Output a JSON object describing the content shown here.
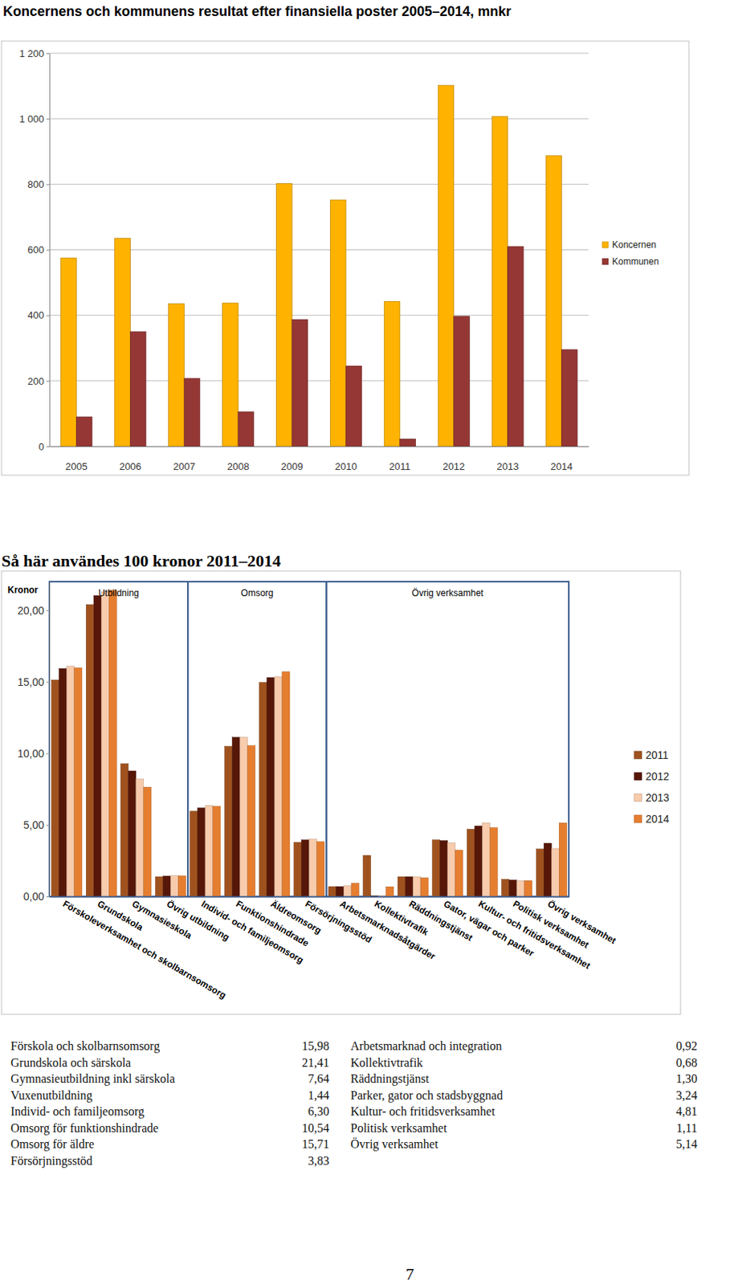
{
  "chart_data": [
    {
      "type": "bar",
      "title": "Koncernens och kommunens resultat efter finansiella poster 2005–2014, mnkr",
      "categories": [
        "2005",
        "2006",
        "2007",
        "2008",
        "2009",
        "2010",
        "2011",
        "2012",
        "2013",
        "2014"
      ],
      "series": [
        {
          "name": "Koncernen",
          "color": "#FFB300",
          "values": [
            575,
            635,
            435,
            437,
            802,
            752,
            442,
            1102,
            1007,
            887
          ]
        },
        {
          "name": "Kommunen",
          "color": "#953735",
          "values": [
            90,
            350,
            207,
            105,
            387,
            245,
            22,
            397,
            610,
            295
          ]
        }
      ],
      "ylim": [
        0,
        1200
      ],
      "yticks": [
        0,
        200,
        400,
        600,
        800,
        {
          "value": 1000,
          "label": "1 000"
        },
        {
          "value": 1200,
          "label": "1 200"
        }
      ],
      "grid": true,
      "legend": "right"
    },
    {
      "type": "bar",
      "title": "Så här användes 100 kronor 2011–2014",
      "y_label": "Kronor",
      "categories": [
        "Förskoleverksamhet och skolbarnsomsorg",
        "Grundskola",
        "Gymnasieskola",
        "Övrig utbildning",
        "Individ- och familjeomsorg",
        "Funktionshindrade",
        "Äldreomsorg",
        "Försörjningsstöd",
        "Arbetsmarknadsåtgärder",
        "Kollektivtrafik",
        "Räddningstjänst",
        "Gator, vägar och parker",
        "Kultur- och fritidsverksamhet",
        "Politisk verksamhet",
        "Övrig verksamhet"
      ],
      "groups": [
        {
          "label": "Utbildning",
          "size": 4
        },
        {
          "label": "Omsorg",
          "size": 4
        },
        {
          "label": "Övrig verksamhet",
          "size": 7
        }
      ],
      "series": [
        {
          "name": "2011",
          "color": "#A0521E",
          "values": [
            15.13,
            20.4,
            9.28,
            1.38,
            5.96,
            10.49,
            14.96,
            3.78,
            0.69,
            2.87,
            1.38,
            3.95,
            4.7,
            1.2,
            3.32
          ]
        },
        {
          "name": "2012",
          "color": "#561608",
          "values": [
            15.93,
            21.03,
            8.77,
            1.43,
            6.19,
            11.12,
            15.3,
            3.95,
            0.69,
            0.05,
            1.38,
            3.9,
            4.93,
            1.15,
            3.72
          ]
        },
        {
          "name": "2013",
          "color": "#F7CBAC",
          "values": [
            16.1,
            21.3,
            8.2,
            1.45,
            6.36,
            11.12,
            15.36,
            4.0,
            0.75,
            0.06,
            1.38,
            3.75,
            5.15,
            1.1,
            3.35
          ]
        },
        {
          "name": "2014",
          "color": "#E67E30",
          "values": [
            15.98,
            21.41,
            7.64,
            1.44,
            6.3,
            10.54,
            15.71,
            3.83,
            0.92,
            0.68,
            1.3,
            3.24,
            4.81,
            1.11,
            5.14
          ]
        }
      ],
      "ylim": [
        0,
        22
      ],
      "yticks": [
        {
          "value": 0,
          "label": "0,00"
        },
        {
          "value": 5,
          "label": "5,00"
        },
        {
          "value": 10,
          "label": "10,00"
        },
        {
          "value": 15,
          "label": "15,00"
        },
        {
          "value": 20,
          "label": "20,00"
        }
      ],
      "grid": false,
      "legend": "right"
    }
  ],
  "table": {
    "columns": [
      [
        [
          "Förskola och skolbarnsomsorg",
          "15,98"
        ],
        [
          "Grundskola och särskola",
          "21,41"
        ],
        [
          "Gymnasieutbildning inkl särskola",
          "7,64"
        ],
        [
          "Vuxenutbildning",
          "1,44"
        ],
        [
          "Individ- och familjeomsorg",
          "6,30"
        ],
        [
          "Omsorg för funktionshindrade",
          "10,54"
        ],
        [
          "Omsorg för äldre",
          "15,71"
        ],
        [
          "Försörjningsstöd",
          "3,83"
        ]
      ],
      [
        [
          "Arbetsmarknad och integration",
          "0,92"
        ],
        [
          "Kollektivtrafik",
          "0,68"
        ],
        [
          "Räddningstjänst",
          "1,30"
        ],
        [
          "Parker, gator och stadsbyggnad",
          "3,24"
        ],
        [
          "Kultur- och fritidsverksamhet",
          "4,81"
        ],
        [
          "Politisk verksamhet",
          "1,11"
        ],
        [
          "Övrig verksamhet",
          "5,14"
        ]
      ]
    ]
  },
  "page_number": "7"
}
